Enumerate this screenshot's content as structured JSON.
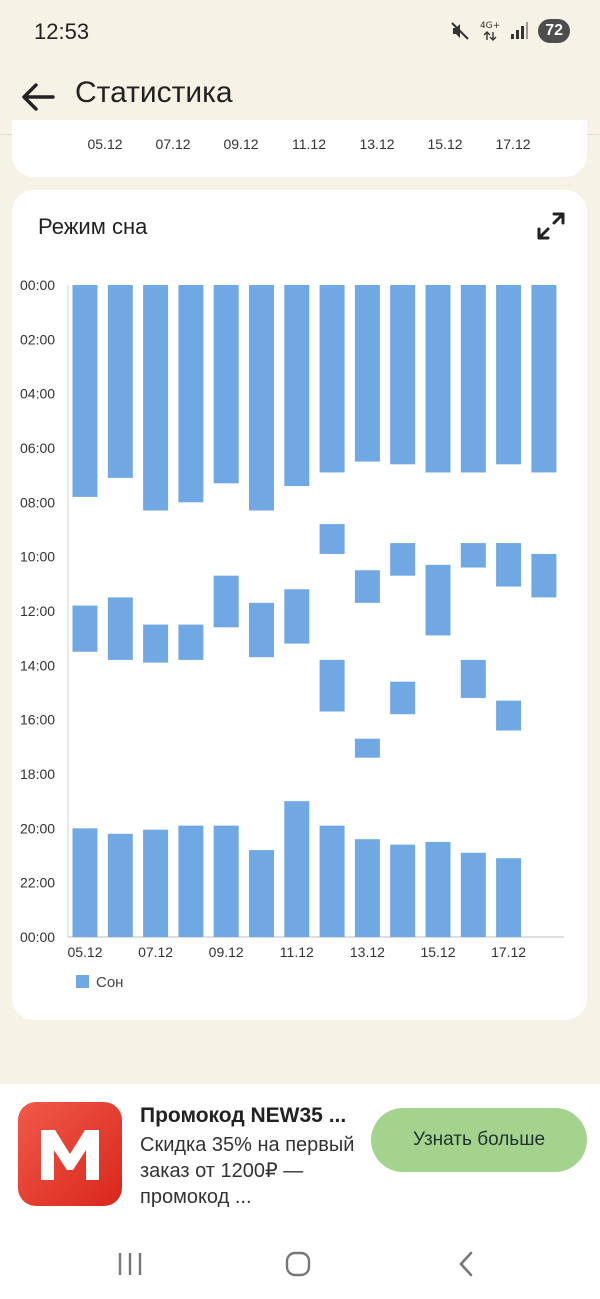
{
  "status_bar": {
    "time": "12:53",
    "network": "4G+",
    "battery": "72"
  },
  "app_bar": {
    "title": "Статистика"
  },
  "previous_chart": {
    "x_labels": [
      "05.12",
      "07.12",
      "09.12",
      "11.12",
      "13.12",
      "15.12",
      "17.12"
    ]
  },
  "sleep_card": {
    "title": "Режим сна"
  },
  "chart_data": {
    "type": "bar",
    "subtype": "floating-range",
    "title": "Режим сна",
    "y_axis_labels": [
      "00:00",
      "02:00",
      "04:00",
      "06:00",
      "08:00",
      "10:00",
      "12:00",
      "14:00",
      "16:00",
      "18:00",
      "20:00",
      "22:00",
      "00:00"
    ],
    "ylim_hours": [
      0,
      24
    ],
    "y_inverted": true,
    "x_tick_labels": [
      "05.12",
      "07.12",
      "09.12",
      "11.12",
      "13.12",
      "15.12",
      "17.12"
    ],
    "categories": [
      "05.12",
      "06.12",
      "07.12",
      "08.12",
      "09.12",
      "10.12",
      "11.12",
      "12.12",
      "13.12",
      "14.12",
      "15.12",
      "16.12",
      "17.12",
      "18.12"
    ],
    "legend": "Сон",
    "legend_position": "bottom-left",
    "color": "#6fa8e2",
    "sessions": [
      [
        [
          0,
          7.8
        ],
        [
          11.8,
          13.5
        ],
        [
          20,
          24
        ]
      ],
      [
        [
          0,
          7.1
        ],
        [
          11.5,
          13.8
        ],
        [
          20.2,
          24
        ]
      ],
      [
        [
          0,
          8.3
        ],
        [
          12.5,
          13.9
        ],
        [
          20.05,
          24
        ]
      ],
      [
        [
          0,
          8.0
        ],
        [
          12.5,
          13.8
        ],
        [
          19.9,
          24
        ]
      ],
      [
        [
          0,
          7.3
        ],
        [
          10.7,
          12.6
        ],
        [
          19.9,
          24
        ]
      ],
      [
        [
          0,
          8.3
        ],
        [
          11.7,
          13.7
        ],
        [
          20.8,
          24
        ]
      ],
      [
        [
          0,
          7.4
        ],
        [
          11.2,
          13.2
        ],
        [
          19.0,
          24
        ]
      ],
      [
        [
          0,
          6.9
        ],
        [
          8.8,
          9.9
        ],
        [
          13.8,
          15.7
        ],
        [
          19.9,
          24
        ]
      ],
      [
        [
          0,
          6.5
        ],
        [
          10.5,
          11.7
        ],
        [
          16.7,
          17.4
        ],
        [
          20.4,
          24
        ]
      ],
      [
        [
          0,
          6.6
        ],
        [
          9.5,
          10.7
        ],
        [
          14.6,
          15.8
        ],
        [
          20.6,
          24
        ]
      ],
      [
        [
          0,
          6.9
        ],
        [
          10.3,
          12.9
        ],
        [
          20.5,
          24
        ]
      ],
      [
        [
          0,
          6.9
        ],
        [
          9.5,
          10.4
        ],
        [
          13.8,
          15.2
        ],
        [
          20.9,
          24
        ]
      ],
      [
        [
          0,
          6.6
        ],
        [
          9.5,
          11.1
        ],
        [
          15.3,
          16.4
        ],
        [
          21.1,
          24
        ]
      ],
      [
        [
          0,
          6.9
        ],
        [
          9.9,
          11.5
        ]
      ]
    ]
  },
  "ad": {
    "title": "Промокод NEW35 ...",
    "text": "Скидка 35% на первый заказ от 1200₽ — промокод ...",
    "button": "Узнать больше",
    "logo_letter": "M"
  },
  "icons": {
    "back": "arrow-left-icon",
    "expand": "expand-icon",
    "mute": "mute-icon",
    "signal": "signal-icon"
  }
}
